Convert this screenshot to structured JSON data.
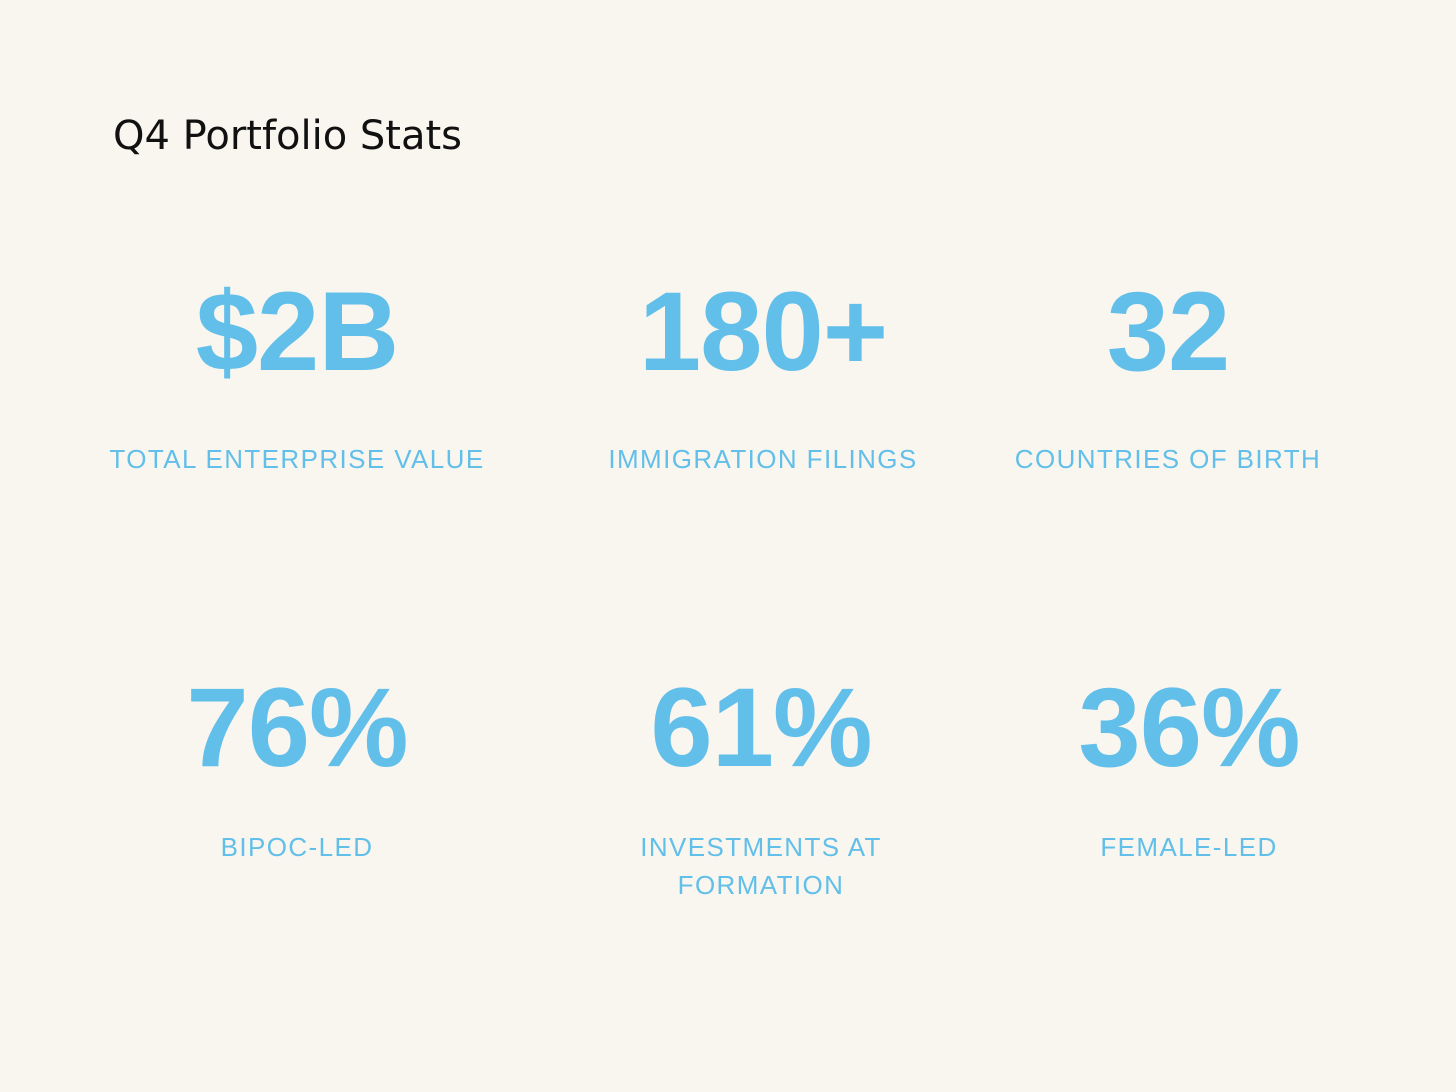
{
  "title": "Q4 Portfolio Stats",
  "accent_color": "#62bfea",
  "background_color": "#f8f6ef",
  "stats": [
    {
      "value": "$2B",
      "label": "TOTAL ENTERPRISE VALUE"
    },
    {
      "value": "180+",
      "label": "IMMIGRATION FILINGS"
    },
    {
      "value": "32",
      "label": "COUNTRIES OF BIRTH"
    },
    {
      "value": "76%",
      "label": "BIPOC-LED"
    },
    {
      "value": "61%",
      "label": "INVESTMENTS AT\nFORMATION"
    },
    {
      "value": "36%",
      "label": "FEMALE-LED"
    }
  ]
}
